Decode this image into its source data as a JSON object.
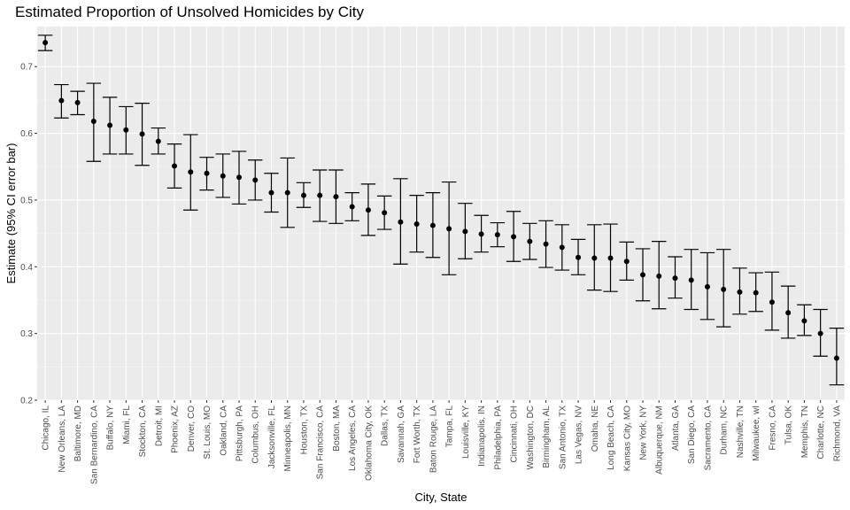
{
  "chart_data": {
    "type": "scatter",
    "title": "Estimated Proportion of Unsolved Homicides by City",
    "xlabel": "City, State",
    "ylabel": "Estimate (95% CI error bar)",
    "ylim": [
      0.2,
      0.76
    ],
    "yticks": [
      0.2,
      0.3,
      0.4,
      0.5,
      0.6,
      0.7
    ],
    "ytick_labels": [
      "0.2",
      "0.3",
      "0.4",
      "0.5",
      "0.6",
      "0.7"
    ],
    "grid": true,
    "points": [
      {
        "city": "Chicago, IL",
        "estimate": 0.736,
        "lower": 0.724,
        "upper": 0.747
      },
      {
        "city": "New Orleans, LA",
        "estimate": 0.649,
        "lower": 0.623,
        "upper": 0.673
      },
      {
        "city": "Baltimore, MD",
        "estimate": 0.646,
        "lower": 0.628,
        "upper": 0.663
      },
      {
        "city": "San Bernardino, CA",
        "estimate": 0.618,
        "lower": 0.558,
        "upper": 0.675
      },
      {
        "city": "Buffalo, NY",
        "estimate": 0.612,
        "lower": 0.569,
        "upper": 0.654
      },
      {
        "city": "Miami, FL",
        "estimate": 0.605,
        "lower": 0.569,
        "upper": 0.64
      },
      {
        "city": "Stockton, CA",
        "estimate": 0.599,
        "lower": 0.552,
        "upper": 0.645
      },
      {
        "city": "Detroit, MI",
        "estimate": 0.588,
        "lower": 0.569,
        "upper": 0.608
      },
      {
        "city": "Phoenix, AZ",
        "estimate": 0.551,
        "lower": 0.518,
        "upper": 0.584
      },
      {
        "city": "Denver, CO",
        "estimate": 0.542,
        "lower": 0.485,
        "upper": 0.598
      },
      {
        "city": "St. Louis, MO",
        "estimate": 0.54,
        "lower": 0.515,
        "upper": 0.564
      },
      {
        "city": "Oakland, CA",
        "estimate": 0.536,
        "lower": 0.504,
        "upper": 0.569
      },
      {
        "city": "Pittsburgh, PA",
        "estimate": 0.534,
        "lower": 0.494,
        "upper": 0.573
      },
      {
        "city": "Columbus, OH",
        "estimate": 0.53,
        "lower": 0.5,
        "upper": 0.56
      },
      {
        "city": "Jacksonville, FL",
        "estimate": 0.511,
        "lower": 0.482,
        "upper": 0.54
      },
      {
        "city": "Minneapolis, MN",
        "estimate": 0.511,
        "lower": 0.459,
        "upper": 0.563
      },
      {
        "city": "Houston, TX",
        "estimate": 0.507,
        "lower": 0.489,
        "upper": 0.526
      },
      {
        "city": "San Francisco, CA",
        "estimate": 0.507,
        "lower": 0.468,
        "upper": 0.545
      },
      {
        "city": "Boston, MA",
        "estimate": 0.505,
        "lower": 0.465,
        "upper": 0.545
      },
      {
        "city": "Los Angeles, CA",
        "estimate": 0.49,
        "lower": 0.469,
        "upper": 0.511
      },
      {
        "city": "Oklahoma City, OK",
        "estimate": 0.485,
        "lower": 0.447,
        "upper": 0.524
      },
      {
        "city": "Dallas, TX",
        "estimate": 0.481,
        "lower": 0.456,
        "upper": 0.506
      },
      {
        "city": "Savannah, GA",
        "estimate": 0.467,
        "lower": 0.404,
        "upper": 0.532
      },
      {
        "city": "Fort Worth, TX",
        "estimate": 0.464,
        "lower": 0.422,
        "upper": 0.507
      },
      {
        "city": "Baton Rouge, LA",
        "estimate": 0.462,
        "lower": 0.414,
        "upper": 0.511
      },
      {
        "city": "Tampa, FL",
        "estimate": 0.457,
        "lower": 0.388,
        "upper": 0.527
      },
      {
        "city": "Louisville, KY",
        "estimate": 0.453,
        "lower": 0.412,
        "upper": 0.495
      },
      {
        "city": "Indianapolis, IN",
        "estimate": 0.449,
        "lower": 0.422,
        "upper": 0.477
      },
      {
        "city": "Philadelphia, PA",
        "estimate": 0.448,
        "lower": 0.43,
        "upper": 0.466
      },
      {
        "city": "Cincinnati, OH",
        "estimate": 0.445,
        "lower": 0.408,
        "upper": 0.483
      },
      {
        "city": "Washington, DC",
        "estimate": 0.438,
        "lower": 0.411,
        "upper": 0.465
      },
      {
        "city": "Birmingham, AL",
        "estimate": 0.434,
        "lower": 0.399,
        "upper": 0.469
      },
      {
        "city": "San Antonio, TX",
        "estimate": 0.429,
        "lower": 0.395,
        "upper": 0.463
      },
      {
        "city": "Las Vegas, NV",
        "estimate": 0.414,
        "lower": 0.388,
        "upper": 0.441
      },
      {
        "city": "Omaha, NE",
        "estimate": 0.413,
        "lower": 0.365,
        "upper": 0.463
      },
      {
        "city": "Long Beach, CA",
        "estimate": 0.413,
        "lower": 0.363,
        "upper": 0.464
      },
      {
        "city": "Kansas City, MO",
        "estimate": 0.408,
        "lower": 0.38,
        "upper": 0.437
      },
      {
        "city": "New York, NY",
        "estimate": 0.388,
        "lower": 0.349,
        "upper": 0.427
      },
      {
        "city": "Albuquerque, NM",
        "estimate": 0.386,
        "lower": 0.337,
        "upper": 0.438
      },
      {
        "city": "Atlanta, GA",
        "estimate": 0.383,
        "lower": 0.353,
        "upper": 0.415
      },
      {
        "city": "San Diego, CA",
        "estimate": 0.38,
        "lower": 0.336,
        "upper": 0.426
      },
      {
        "city": "Sacramento, CA",
        "estimate": 0.37,
        "lower": 0.321,
        "upper": 0.421
      },
      {
        "city": "Durham, NC",
        "estimate": 0.366,
        "lower": 0.31,
        "upper": 0.426
      },
      {
        "city": "Nashville, TN",
        "estimate": 0.362,
        "lower": 0.329,
        "upper": 0.398
      },
      {
        "city": "Milwaukee, wI",
        "estimate": 0.361,
        "lower": 0.333,
        "upper": 0.391
      },
      {
        "city": "Fresno, CA",
        "estimate": 0.347,
        "lower": 0.305,
        "upper": 0.392
      },
      {
        "city": "Tulsa, OK",
        "estimate": 0.331,
        "lower": 0.293,
        "upper": 0.371
      },
      {
        "city": "Memphis, TN",
        "estimate": 0.319,
        "lower": 0.297,
        "upper": 0.343
      },
      {
        "city": "Charlotte, NC",
        "estimate": 0.3,
        "lower": 0.266,
        "upper": 0.336
      },
      {
        "city": "Richmond, VA",
        "estimate": 0.263,
        "lower": 0.223,
        "upper": 0.308
      }
    ]
  }
}
